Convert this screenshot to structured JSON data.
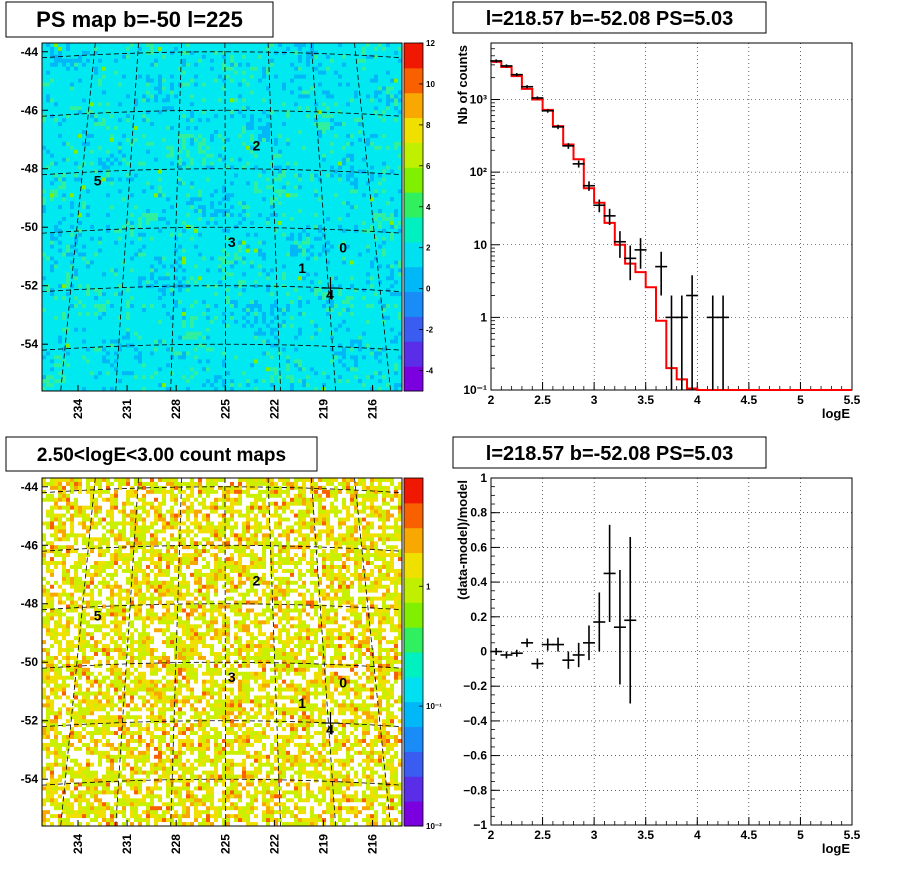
{
  "chart_data": [
    {
      "id": "ps-map",
      "type": "heatmap",
      "title": "PS map b=-50 l=225",
      "y_ticks": [
        "-44",
        "-46",
        "-48",
        "-50",
        "-52",
        "-54"
      ],
      "y_tick_values": [
        -44,
        -46,
        -48,
        -50,
        -52,
        -54
      ],
      "x_ticks": [
        "234",
        "231",
        "228",
        "225",
        "222",
        "219",
        "216"
      ],
      "x_tick_values": [
        234,
        231,
        228,
        225,
        222,
        219,
        216
      ],
      "ylim": [
        -55.6,
        -43.7
      ],
      "xlim": [
        236.2,
        214.2
      ],
      "colorbar": {
        "range": [
          -5,
          12
        ],
        "ticks": [
          "12",
          "10",
          "8",
          "6",
          "4",
          "2",
          "0",
          "-2",
          "-4"
        ],
        "tick_values": [
          12,
          10,
          8,
          6,
          4,
          2,
          0,
          -2,
          -4
        ]
      },
      "sources": [
        {
          "label": "0",
          "l": 217.8,
          "b": -50.7
        },
        {
          "label": "1",
          "l": 220.3,
          "b": -51.4
        },
        {
          "label": "2",
          "l": 223.1,
          "b": -47.2
        },
        {
          "label": "3",
          "l": 224.6,
          "b": -50.5
        },
        {
          "label": "4",
          "l": 218.6,
          "b": -52.3
        },
        {
          "label": "5",
          "l": 232.8,
          "b": -48.4
        }
      ],
      "cross_marker": {
        "l": 218.57,
        "b": -52.08
      },
      "grid": true
    },
    {
      "id": "spectrum",
      "type": "line",
      "title": "l=218.57 b=-52.08 PS=5.03",
      "xlabel": "logE",
      "ylabel": "Nb of counts",
      "xlim": [
        2,
        5.5
      ],
      "ylim": [
        0.1,
        6000
      ],
      "yscale": "log",
      "x_ticks": [
        "2",
        "2.5",
        "3",
        "3.5",
        "4",
        "4.5",
        "5",
        "5.5"
      ],
      "x_tick_values": [
        2,
        2.5,
        3,
        3.5,
        4,
        4.5,
        5,
        5.5
      ],
      "y_ticks": [
        "10⁻¹",
        "1",
        "10",
        "10²",
        "10³"
      ],
      "y_tick_values": [
        0.1,
        1,
        10,
        100,
        1000
      ],
      "grid": true,
      "data_points": {
        "x": [
          2.05,
          2.15,
          2.25,
          2.35,
          2.45,
          2.55,
          2.65,
          2.75,
          2.85,
          2.95,
          3.05,
          3.15,
          3.25,
          3.35,
          3.45,
          3.65,
          3.75,
          3.85,
          3.95,
          4.15,
          4.25
        ],
        "y": [
          3400,
          2900,
          2200,
          1500,
          1050,
          700,
          420,
          230,
          130,
          65,
          35,
          25,
          11,
          6.5,
          8.5,
          5,
          1,
          1,
          2,
          1,
          1
        ],
        "y_err_low": [
          0.05,
          0.05,
          0.05,
          0.05,
          0.05,
          0.06,
          0.07,
          0.09,
          0.11,
          0.15,
          0.2,
          0.25,
          0.4,
          0.5,
          0.45,
          0.6,
          1,
          1,
          0.99,
          1,
          1
        ],
        "y_err_high": [
          0.05,
          0.05,
          0.05,
          0.05,
          0.05,
          0.06,
          0.07,
          0.09,
          0.11,
          0.15,
          0.2,
          0.25,
          0.4,
          0.5,
          0.45,
          0.6,
          1,
          1,
          0.9,
          1,
          1
        ]
      },
      "model_step": {
        "color": "#ff0000",
        "edges": [
          2.0,
          2.1,
          2.2,
          2.3,
          2.4,
          2.5,
          2.6,
          2.7,
          2.8,
          2.9,
          3.0,
          3.1,
          3.2,
          3.3,
          3.4,
          3.5,
          3.6,
          3.7,
          3.8,
          3.9,
          4.0,
          5.5
        ],
        "values": [
          3300,
          2800,
          2100,
          1400,
          1000,
          720,
          430,
          240,
          150,
          60,
          38,
          20,
          10,
          5.5,
          4.2,
          2.6,
          0.9,
          0.2,
          0.14,
          0.105,
          0.1
        ]
      }
    },
    {
      "id": "count-map",
      "type": "heatmap",
      "title": "2.50<logE<3.00 count maps",
      "y_ticks": [
        "-44",
        "-46",
        "-48",
        "-50",
        "-52",
        "-54"
      ],
      "y_tick_values": [
        -44,
        -46,
        -48,
        -50,
        -52,
        -54
      ],
      "x_ticks": [
        "234",
        "231",
        "228",
        "225",
        "222",
        "219",
        "216"
      ],
      "x_tick_values": [
        234,
        231,
        228,
        225,
        222,
        219,
        216
      ],
      "ylim": [
        -55.6,
        -43.7
      ],
      "xlim": [
        236.2,
        214.2
      ],
      "colorbar": {
        "scale": "log",
        "range": [
          0.01,
          8
        ],
        "ticks": [
          "1",
          "10⁻¹",
          "10⁻²"
        ],
        "tick_values": [
          1,
          0.1,
          0.01
        ]
      },
      "sources": [
        {
          "label": "0",
          "l": 217.8,
          "b": -50.7
        },
        {
          "label": "1",
          "l": 220.3,
          "b": -51.4
        },
        {
          "label": "2",
          "l": 223.1,
          "b": -47.2
        },
        {
          "label": "3",
          "l": 224.6,
          "b": -50.5
        },
        {
          "label": "4",
          "l": 218.6,
          "b": -52.3
        },
        {
          "label": "5",
          "l": 232.8,
          "b": -48.4
        }
      ],
      "cross_marker": {
        "l": 218.57,
        "b": -52.08
      },
      "grid": true
    },
    {
      "id": "residuals",
      "type": "scatter",
      "title": "l=218.57 b=-52.08 PS=5.03",
      "xlabel": "logE",
      "ylabel": "(data-model)/model",
      "xlim": [
        2,
        5.5
      ],
      "ylim": [
        -1,
        1
      ],
      "x_ticks": [
        "2",
        "2.5",
        "3",
        "3.5",
        "4",
        "4.5",
        "5",
        "5.5"
      ],
      "x_tick_values": [
        2,
        2.5,
        3,
        3.5,
        4,
        4.5,
        5,
        5.5
      ],
      "y_ticks": [
        "1",
        "0.8",
        "0.6",
        "0.4",
        "0.2",
        "0",
        "−0.2",
        "−0.4",
        "−0.6",
        "−0.8",
        "−1"
      ],
      "y_tick_values": [
        1,
        0.8,
        0.6,
        0.4,
        0.2,
        0,
        -0.2,
        -0.4,
        -0.6,
        -0.8,
        -1
      ],
      "grid": true,
      "data_points": {
        "x": [
          2.05,
          2.15,
          2.25,
          2.35,
          2.45,
          2.55,
          2.65,
          2.75,
          2.85,
          2.95,
          3.05,
          3.15,
          3.25,
          3.35
        ],
        "y": [
          0.0,
          -0.02,
          -0.01,
          0.05,
          -0.07,
          0.04,
          0.04,
          -0.05,
          -0.02,
          0.05,
          0.17,
          0.45,
          0.14,
          0.18
        ],
        "y_err": [
          0.02,
          0.02,
          0.02,
          0.025,
          0.03,
          0.035,
          0.04,
          0.05,
          0.07,
          0.1,
          0.17,
          0.28,
          0.33,
          0.48
        ]
      }
    }
  ]
}
